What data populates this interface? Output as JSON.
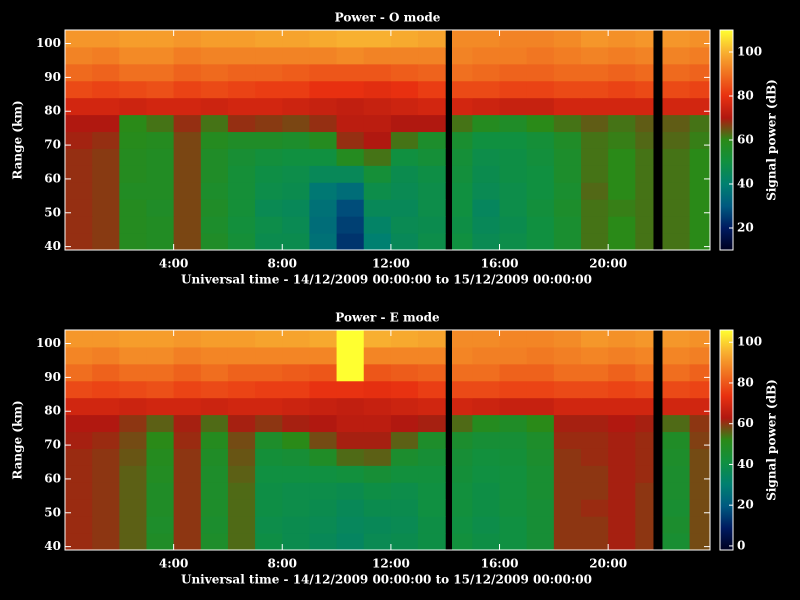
{
  "chart_data": [
    {
      "type": "heatmap",
      "title": "Power - O mode",
      "xlabel": "Universal time - 14/12/2009 00:00:00 to 15/12/2009 00:00:00",
      "ylabel": "Range (km)",
      "colorbar_label": "Signal power (dB)",
      "x_edges": [
        0,
        1,
        2,
        3,
        4,
        5,
        6,
        7,
        8,
        9,
        10,
        11,
        12,
        13,
        14,
        14.25,
        15,
        16,
        17,
        18,
        19,
        20,
        21,
        21.65,
        22,
        23,
        23.75
      ],
      "y_edges": [
        39,
        44,
        49,
        54,
        59,
        64,
        69,
        74,
        79,
        84,
        89,
        94,
        99,
        104
      ],
      "z": [
        [
          68,
          67,
          58,
          57,
          66,
          56,
          52,
          47,
          47,
          36,
          24,
          40,
          45,
          48,
          null,
          50,
          46,
          48,
          50,
          54,
          62,
          60,
          62,
          null,
          62,
          60
        ],
        [
          68,
          67,
          58,
          57,
          66,
          55,
          51,
          48,
          46,
          35,
          26,
          42,
          46,
          47,
          null,
          49,
          45,
          47,
          50,
          54,
          62,
          60,
          62,
          null,
          62,
          60
        ],
        [
          68,
          67,
          58,
          56,
          66,
          56,
          52,
          46,
          45,
          36,
          28,
          45,
          45,
          48,
          null,
          50,
          44,
          48,
          51,
          55,
          62,
          61,
          62,
          null,
          62,
          60
        ],
        [
          68,
          67,
          57,
          57,
          66,
          55,
          52,
          48,
          47,
          38,
          35,
          48,
          46,
          48,
          null,
          50,
          46,
          48,
          50,
          54,
          63,
          60,
          62,
          null,
          62,
          60
        ],
        [
          68,
          67,
          58,
          57,
          66,
          56,
          52,
          49,
          48,
          45,
          45,
          52,
          47,
          49,
          null,
          51,
          47,
          49,
          50,
          55,
          62,
          60,
          62,
          null,
          62,
          60
        ],
        [
          68,
          67,
          58,
          57,
          66,
          56,
          53,
          51,
          50,
          50,
          58,
          62,
          50,
          52,
          null,
          52,
          48,
          49,
          51,
          55,
          62,
          60,
          62,
          null,
          62,
          60
        ],
        [
          69,
          68,
          59,
          58,
          66,
          58,
          56,
          56,
          55,
          58,
          68,
          70,
          62,
          55,
          null,
          54,
          50,
          50,
          52,
          56,
          62,
          61,
          63,
          null,
          63,
          61
        ],
        [
          70,
          70,
          60,
          62,
          68,
          62,
          68,
          67,
          66,
          68,
          72,
          72,
          70,
          70,
          null,
          62,
          58,
          56,
          60,
          62,
          64,
          62,
          64,
          null,
          64,
          62
        ],
        [
          76,
          76,
          75,
          76,
          76,
          75,
          76,
          76,
          75,
          74,
          73,
          74,
          75,
          76,
          null,
          76,
          75,
          74,
          74,
          76,
          76,
          76,
          76,
          null,
          76,
          76
        ],
        [
          84,
          83,
          84,
          85,
          83,
          84,
          83,
          82,
          82,
          80,
          80,
          79,
          80,
          82,
          null,
          84,
          84,
          83,
          83,
          84,
          84,
          83,
          84,
          null,
          84,
          83
        ],
        [
          89,
          88,
          90,
          90,
          88,
          89,
          88,
          88,
          87,
          86,
          86,
          86,
          87,
          88,
          null,
          90,
          89,
          88,
          88,
          89,
          89,
          88,
          89,
          null,
          89,
          88
        ],
        [
          93,
          92,
          94,
          94,
          92,
          93,
          93,
          93,
          93,
          93,
          94,
          93,
          93,
          93,
          null,
          93,
          92,
          92,
          91,
          92,
          93,
          92,
          93,
          null,
          93,
          92
        ],
        [
          96,
          96,
          97,
          97,
          96,
          97,
          97,
          98,
          98,
          99,
          100,
          100,
          99,
          98,
          null,
          94,
          94,
          93,
          93,
          94,
          96,
          95,
          96,
          null,
          96,
          95
        ]
      ],
      "xlim": [
        0,
        23.75
      ],
      "ylim": [
        39,
        104
      ],
      "xticks": [
        {
          "value": 4,
          "label": "4:00"
        },
        {
          "value": 8,
          "label": "8:00"
        },
        {
          "value": 12,
          "label": "12:00"
        },
        {
          "value": 16,
          "label": "16:00"
        },
        {
          "value": 20,
          "label": "20:00"
        }
      ],
      "yticks": [
        40,
        50,
        60,
        70,
        80,
        90,
        100
      ],
      "clim": [
        10,
        110
      ],
      "cticks": [
        20,
        40,
        60,
        80,
        100
      ],
      "colormap": [
        "#000020",
        "#001a60",
        "#005a80",
        "#008070",
        "#109040",
        "#2a8a18",
        "#b01810",
        "#e83010",
        "#f07020",
        "#f8b030",
        "#ffff30"
      ]
    },
    {
      "type": "heatmap",
      "title": "Power - E mode",
      "xlabel": "Universal time - 14/12/2009 00:00:00 to 15/12/2009 00:00:00",
      "ylabel": "Range (km)",
      "colorbar_label": "Signal power (dB)",
      "x_edges": [
        0,
        1,
        2,
        3,
        4,
        5,
        6,
        7,
        8,
        9,
        10,
        11,
        12,
        13,
        14,
        14.25,
        15,
        16,
        17,
        18,
        19,
        20,
        21,
        21.65,
        22,
        23,
        23.75
      ],
      "y_edges": [
        39,
        44,
        49,
        54,
        59,
        64,
        69,
        74,
        79,
        84,
        89,
        94,
        99,
        104
      ],
      "z": [
        [
          61,
          60,
          56,
          48,
          60,
          47,
          55,
          40,
          38,
          36,
          34,
          37,
          38,
          40,
          null,
          42,
          40,
          41,
          44,
          60,
          60,
          62,
          60,
          null,
          45,
          58
        ],
        [
          61,
          60,
          56,
          47,
          60,
          46,
          55,
          39,
          38,
          37,
          35,
          36,
          37,
          40,
          null,
          41,
          39,
          41,
          44,
          60,
          60,
          62,
          60,
          null,
          46,
          58
        ],
        [
          61,
          60,
          56,
          48,
          60,
          47,
          55,
          40,
          39,
          38,
          36,
          38,
          38,
          41,
          null,
          42,
          40,
          42,
          44,
          60,
          61,
          62,
          60,
          null,
          45,
          58
        ],
        [
          61,
          60,
          56,
          48,
          60,
          47,
          55,
          40,
          39,
          39,
          38,
          40,
          39,
          41,
          null,
          42,
          40,
          42,
          45,
          60,
          60,
          62,
          60,
          null,
          46,
          58
        ],
        [
          61,
          60,
          56,
          49,
          60,
          47,
          56,
          41,
          41,
          41,
          42,
          44,
          42,
          42,
          null,
          43,
          41,
          42,
          45,
          60,
          60,
          62,
          61,
          null,
          46,
          58
        ],
        [
          61,
          60,
          57,
          50,
          60,
          48,
          57,
          43,
          44,
          48,
          55,
          56,
          46,
          44,
          null,
          44,
          42,
          43,
          46,
          60,
          61,
          62,
          61,
          null,
          47,
          58
        ],
        [
          62,
          61,
          58,
          52,
          61,
          50,
          58,
          47,
          52,
          58,
          62,
          62,
          56,
          47,
          null,
          46,
          44,
          44,
          47,
          61,
          61,
          62,
          61,
          null,
          48,
          59
        ],
        [
          63,
          63,
          60,
          56,
          62,
          55,
          62,
          60,
          62,
          63,
          65,
          65,
          63,
          62,
          null,
          55,
          50,
          48,
          52,
          62,
          62,
          63,
          62,
          null,
          55,
          60
        ],
        [
          69,
          69,
          68,
          69,
          69,
          68,
          69,
          69,
          68,
          67,
          66,
          67,
          68,
          69,
          null,
          69,
          68,
          67,
          67,
          69,
          69,
          69,
          69,
          null,
          69,
          69
        ],
        [
          78,
          77,
          78,
          79,
          77,
          78,
          77,
          76,
          76,
          74,
          74,
          73,
          74,
          76,
          null,
          78,
          78,
          77,
          77,
          78,
          78,
          77,
          78,
          null,
          78,
          77
        ],
        [
          84,
          82,
          84,
          84,
          82,
          84,
          82,
          82,
          81,
          80,
          106,
          80,
          81,
          82,
          null,
          84,
          84,
          82,
          82,
          84,
          84,
          82,
          84,
          null,
          84,
          82
        ],
        [
          88,
          87,
          89,
          89,
          87,
          88,
          88,
          88,
          88,
          88,
          106,
          88,
          88,
          88,
          null,
          88,
          87,
          87,
          86,
          87,
          88,
          87,
          88,
          null,
          88,
          87
        ],
        [
          91,
          91,
          92,
          92,
          91,
          92,
          92,
          93,
          93,
          94,
          106,
          95,
          94,
          93,
          null,
          89,
          89,
          88,
          88,
          89,
          91,
          90,
          91,
          null,
          91,
          90
        ]
      ],
      "xlim": [
        0,
        23.75
      ],
      "ylim": [
        39,
        104
      ],
      "xticks": [
        {
          "value": 4,
          "label": "4:00"
        },
        {
          "value": 8,
          "label": "8:00"
        },
        {
          "value": 12,
          "label": "12:00"
        },
        {
          "value": 16,
          "label": "16:00"
        },
        {
          "value": 20,
          "label": "20:00"
        }
      ],
      "yticks": [
        40,
        50,
        60,
        70,
        80,
        90,
        100
      ],
      "clim": [
        -2,
        106
      ],
      "cticks": [
        0,
        20,
        40,
        60,
        80,
        100
      ],
      "colormap": [
        "#000020",
        "#001a60",
        "#005a80",
        "#008070",
        "#109040",
        "#2a8a18",
        "#b01810",
        "#e83010",
        "#f07020",
        "#f8b030",
        "#ffff30"
      ]
    }
  ]
}
